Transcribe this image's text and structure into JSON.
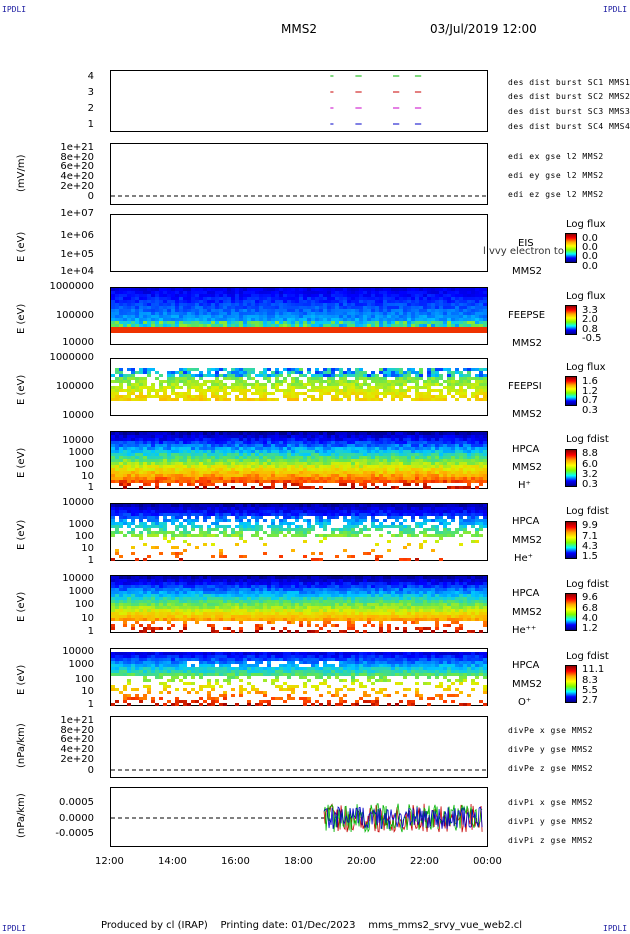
{
  "corners": {
    "tl": "IPDLI",
    "tr": "IPDLI",
    "bl": "IPDLI",
    "br": "IPDLI"
  },
  "header": {
    "spacecraft": "MMS2",
    "date": "03/Jul/2019 12:00"
  },
  "footer": {
    "text": "Produced by cl (IRAP)    Printing date: 01/Dec/2023    mms_mms2_srvy_vue_web2.cl"
  },
  "x_axis": {
    "ticks": [
      "12:00",
      "14:00",
      "16:00",
      "18:00",
      "20:00",
      "22:00",
      "00:00"
    ]
  },
  "panels": {
    "p1": {
      "ylabel": "",
      "ticks": [
        "4",
        "3",
        "2",
        "1"
      ],
      "legend": [
        {
          "text": "des dist burst SC1 MMS1",
          "color": "#0000c8"
        },
        {
          "text": "des dist burst SC2 MMS2",
          "color": "#c800c8"
        },
        {
          "text": "des dist burst SC3 MMS3",
          "color": "#c80000"
        },
        {
          "text": "des dist burst SC4 MMS4",
          "color": "#00b400"
        }
      ]
    },
    "p2": {
      "ylabel": "(mV/m)",
      "ticks": [
        "1e+21",
        "8e+20",
        "6e+20",
        "4e+20",
        "2e+20",
        "0"
      ],
      "legend": [
        {
          "text": "edi ex gse l2 MMS2",
          "color": "#c80000"
        },
        {
          "text": "edi ey gse l2 MMS2",
          "color": "#00b400"
        },
        {
          "text": "edi ez gse l2 MMS2",
          "color": "#0000c8"
        }
      ]
    },
    "p3": {
      "ylabel": "E (eV)",
      "ticks": [
        "1e+07",
        "1e+06",
        "1e+05",
        "1e+04"
      ],
      "side": [
        "EIS",
        "MMS2"
      ],
      "overlay": "l vvy electron to",
      "cb_title": "Log flux",
      "cb_vals": [
        "0.0",
        "0.0",
        "0.0",
        "0.0"
      ]
    },
    "p4": {
      "ylabel": "E (eV)",
      "ticks": [
        "1000000",
        "100000",
        "10000"
      ],
      "side": [
        "FEEPSE",
        "MMS2"
      ],
      "cb_title": "Log flux",
      "cb_vals": [
        "3.3",
        "2.0",
        "0.8",
        "-0.5"
      ]
    },
    "p5": {
      "ylabel": "E (eV)",
      "ticks": [
        "1000000",
        "100000",
        "10000"
      ],
      "side": [
        "FEEPSI",
        "MMS2"
      ],
      "cb_title": "Log flux",
      "cb_vals": [
        "1.6",
        "1.2",
        "0.7",
        "0.3"
      ]
    },
    "p6": {
      "ylabel": "E (eV)",
      "ticks": [
        "10000",
        "1000",
        "100",
        "10",
        "1"
      ],
      "side": [
        "HPCA",
        "MMS2",
        "H⁺"
      ],
      "cb_title": "Log fdist",
      "cb_vals": [
        "8.8",
        "6.0",
        "3.2",
        "0.3"
      ]
    },
    "p7": {
      "ylabel": "E (eV)",
      "ticks": [
        "10000",
        "1000",
        "100",
        "10",
        "1"
      ],
      "side": [
        "HPCA",
        "MMS2",
        "He⁺"
      ],
      "cb_title": "Log fdist",
      "cb_vals": [
        "9.9",
        "7.1",
        "4.3",
        "1.5"
      ]
    },
    "p8": {
      "ylabel": "E (eV)",
      "ticks": [
        "10000",
        "1000",
        "100",
        "10",
        "1"
      ],
      "side": [
        "HPCA",
        "MMS2",
        "He⁺⁺"
      ],
      "cb_title": "Log fdist",
      "cb_vals": [
        "9.6",
        "6.8",
        "4.0",
        "1.2"
      ]
    },
    "p9": {
      "ylabel": "E (eV)",
      "ticks": [
        "10000",
        "1000",
        "100",
        "10",
        "1"
      ],
      "side": [
        "HPCA",
        "MMS2",
        "O⁺"
      ],
      "cb_title": "Log fdist",
      "cb_vals": [
        "11.1",
        "8.3",
        "5.5",
        "2.7"
      ]
    },
    "p10": {
      "ylabel": "(nPa/km)",
      "ticks": [
        "1e+21",
        "8e+20",
        "6e+20",
        "4e+20",
        "2e+20",
        "0"
      ],
      "legend": [
        {
          "text": "divPe x gse MMS2",
          "color": "#c80000"
        },
        {
          "text": "divPe y gse MMS2",
          "color": "#00b400"
        },
        {
          "text": "divPe z gse MMS2",
          "color": "#0000c8"
        }
      ]
    },
    "p11": {
      "ylabel": "(nPa/km)",
      "ticks": [
        "0.0005",
        "0.0000",
        "-0.0005"
      ],
      "legend": [
        {
          "text": "divPi x gse MMS2",
          "color": "#c80000"
        },
        {
          "text": "divPi y gse MMS2",
          "color": "#00b400"
        },
        {
          "text": "divPi z gse MMS2",
          "color": "#0000c8"
        }
      ]
    }
  },
  "chart_data": {
    "type": "heatmap",
    "x_range": [
      "12:00",
      "00:00"
    ],
    "burst_intervals_hours": [
      [
        19.0,
        19.1
      ],
      [
        19.8,
        20.0
      ],
      [
        21.0,
        21.2
      ],
      [
        21.7,
        21.9
      ]
    ],
    "divPi_range": [
      -0.0008,
      0.0008
    ],
    "divPi_start_hour": 18.8,
    "feepse_fixed_band_eV": [
      30000,
      40000
    ]
  }
}
